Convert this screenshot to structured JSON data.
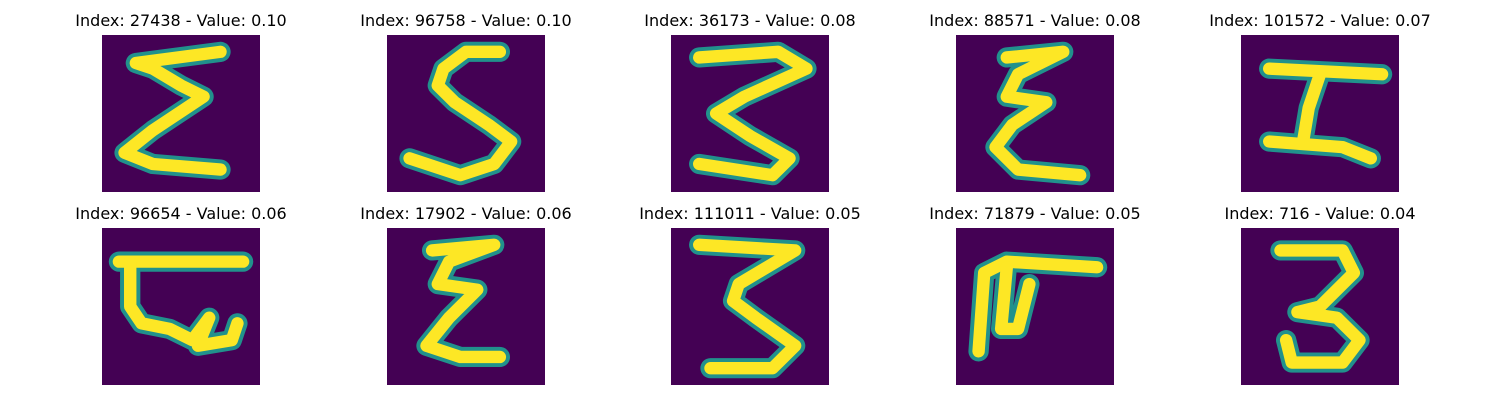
{
  "figure": {
    "colors": {
      "background": "#440154",
      "glow": "#21918c",
      "stroke": "#fde725"
    },
    "panels": [
      {
        "title": "Index: 27438 - Value: 0.10",
        "glyph": "sigma"
      },
      {
        "title": "Index: 96758 - Value: 0.10",
        "glyph": "s"
      },
      {
        "title": "Index: 36173 - Value: 0.08",
        "glyph": "three-z"
      },
      {
        "title": "Index: 88571 - Value: 0.08",
        "glyph": "e-zigzag"
      },
      {
        "title": "Index: 101572 - Value: 0.07",
        "glyph": "h-rotated"
      },
      {
        "title": "Index: 96654 - Value: 0.06",
        "glyph": "e-box"
      },
      {
        "title": "Index: 17902 - Value: 0.06",
        "glyph": "e-zigzag-2"
      },
      {
        "title": "Index: 111011 - Value: 0.05",
        "glyph": "three"
      },
      {
        "title": "Index: 71879 - Value: 0.05",
        "glyph": "f-bent"
      },
      {
        "title": "Index: 716 - Value: 0.04",
        "glyph": "three-b"
      }
    ]
  }
}
